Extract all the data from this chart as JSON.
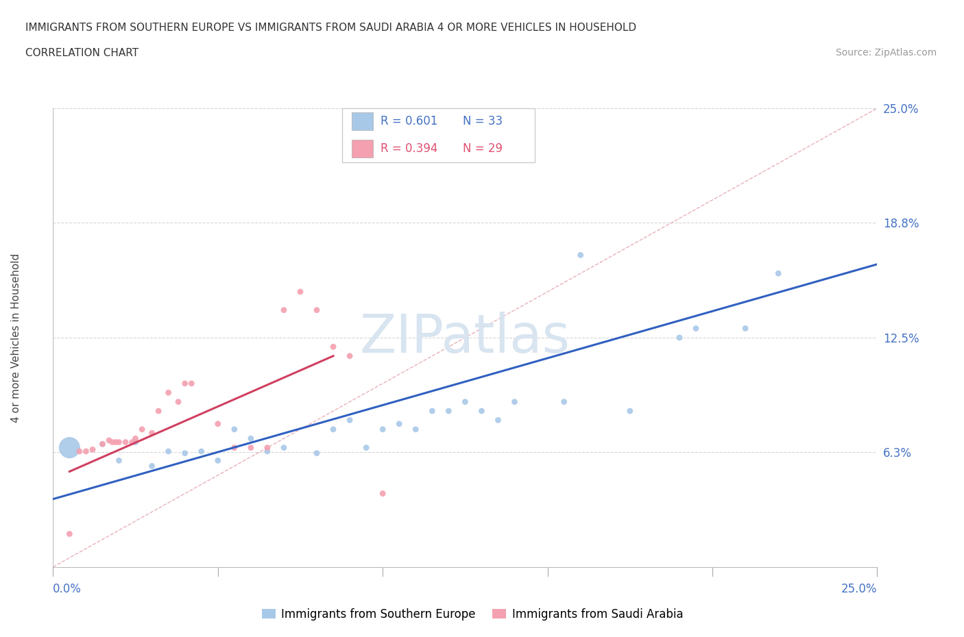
{
  "title_line1": "IMMIGRANTS FROM SOUTHERN EUROPE VS IMMIGRANTS FROM SAUDI ARABIA 4 OR MORE VEHICLES IN HOUSEHOLD",
  "title_line2": "CORRELATION CHART",
  "source_text": "Source: ZipAtlas.com",
  "ylabel": "4 or more Vehicles in Household",
  "xlim": [
    0.0,
    0.25
  ],
  "ylim": [
    0.0,
    0.25
  ],
  "ytick_vals": [
    0.0,
    0.0625,
    0.125,
    0.1875,
    0.25
  ],
  "ytick_labels": [
    "",
    "6.3%",
    "12.5%",
    "18.8%",
    "25.0%"
  ],
  "grid_color": "#cccccc",
  "background_color": "#ffffff",
  "legend_R1": "R = 0.601",
  "legend_N1": "N = 33",
  "legend_R2": "R = 0.394",
  "legend_N2": "N = 29",
  "color_blue": "#a8c8e8",
  "color_pink": "#f4a0b0",
  "color_blue_dark": "#4472c4",
  "color_pink_dark": "#e05070",
  "color_line_blue": "#3060c0",
  "color_line_pink": "#d04060",
  "color_identity": "#e8b0b8",
  "watermark_color": "#d8e4f0",
  "blue_scatter_x": [
    0.005,
    0.015,
    0.02,
    0.025,
    0.03,
    0.035,
    0.04,
    0.045,
    0.05,
    0.055,
    0.06,
    0.065,
    0.07,
    0.08,
    0.085,
    0.09,
    0.095,
    0.1,
    0.105,
    0.11,
    0.115,
    0.12,
    0.125,
    0.13,
    0.135,
    0.14,
    0.155,
    0.16,
    0.175,
    0.19,
    0.195,
    0.21,
    0.22
  ],
  "blue_scatter_y": [
    0.065,
    0.067,
    0.058,
    0.068,
    0.055,
    0.063,
    0.062,
    0.063,
    0.058,
    0.075,
    0.07,
    0.063,
    0.065,
    0.062,
    0.075,
    0.08,
    0.065,
    0.075,
    0.078,
    0.075,
    0.085,
    0.085,
    0.09,
    0.085,
    0.08,
    0.09,
    0.09,
    0.17,
    0.085,
    0.125,
    0.13,
    0.13,
    0.16
  ],
  "blue_dot_sizes": [
    500,
    40,
    40,
    40,
    40,
    40,
    40,
    40,
    40,
    40,
    40,
    40,
    40,
    40,
    40,
    40,
    40,
    40,
    40,
    40,
    40,
    40,
    40,
    40,
    40,
    40,
    40,
    40,
    40,
    40,
    40,
    40,
    40
  ],
  "pink_scatter_x": [
    0.005,
    0.008,
    0.01,
    0.012,
    0.015,
    0.017,
    0.018,
    0.019,
    0.02,
    0.022,
    0.024,
    0.025,
    0.027,
    0.03,
    0.032,
    0.035,
    0.038,
    0.04,
    0.042,
    0.05,
    0.055,
    0.06,
    0.065,
    0.07,
    0.075,
    0.08,
    0.085,
    0.09,
    0.1
  ],
  "pink_scatter_y": [
    0.018,
    0.063,
    0.063,
    0.064,
    0.067,
    0.069,
    0.068,
    0.068,
    0.068,
    0.068,
    0.068,
    0.07,
    0.075,
    0.073,
    0.085,
    0.095,
    0.09,
    0.1,
    0.1,
    0.078,
    0.065,
    0.065,
    0.065,
    0.14,
    0.15,
    0.14,
    0.12,
    0.115,
    0.04
  ],
  "pink_dot_sizes": [
    40,
    40,
    40,
    40,
    40,
    40,
    40,
    40,
    40,
    40,
    40,
    40,
    40,
    40,
    40,
    40,
    40,
    40,
    40,
    40,
    40,
    40,
    40,
    40,
    40,
    40,
    40,
    40,
    40
  ],
  "blue_line_x": [
    0.0,
    0.25
  ],
  "blue_line_y": [
    0.037,
    0.165
  ],
  "pink_line_x": [
    0.005,
    0.085
  ],
  "pink_line_y": [
    0.052,
    0.115
  ]
}
